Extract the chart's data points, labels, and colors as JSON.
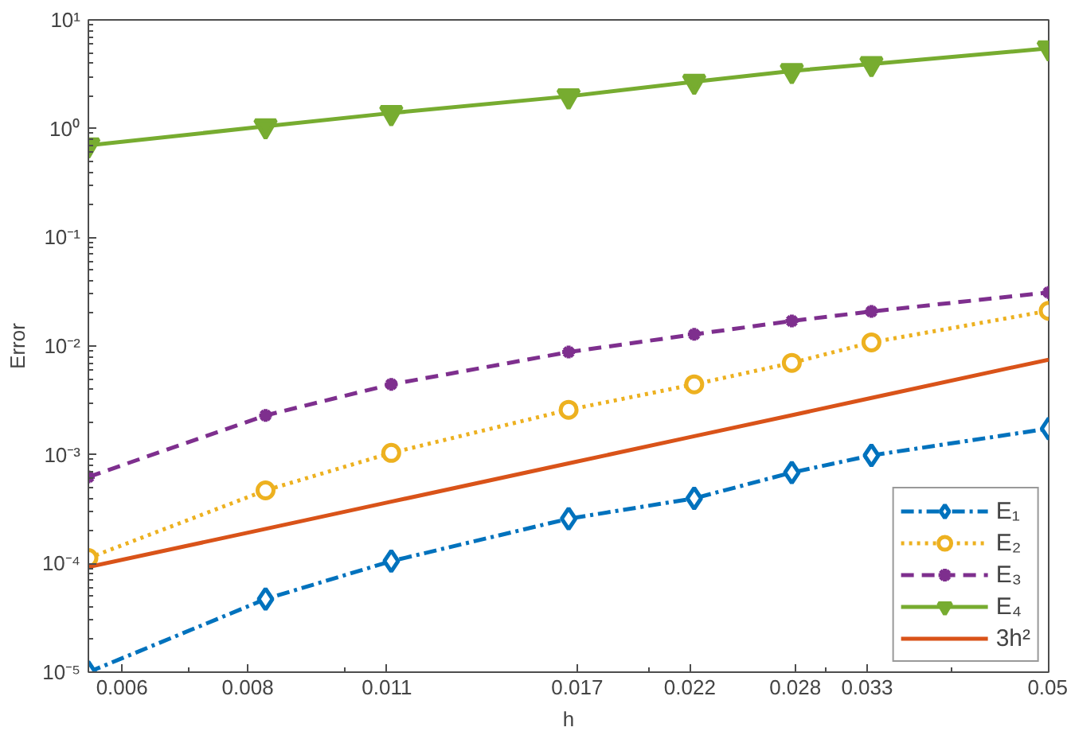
{
  "chart_data": {
    "type": "line",
    "xlabel": "h",
    "ylabel": "Error",
    "log": "xy",
    "grid": false,
    "legend": "bottom right",
    "x": [
      0.005556,
      0.008333,
      0.01111,
      0.01667,
      0.02222,
      0.02778,
      0.03333,
      0.05
    ],
    "xlim": [
      0.005556,
      0.05
    ],
    "xticks": [
      {
        "value": 0.006,
        "label": "0.006"
      },
      {
        "value": 0.007,
        "label": null
      },
      {
        "value": 0.008,
        "label": "0.008"
      },
      {
        "value": 0.01,
        "label": null
      },
      {
        "value": 0.011,
        "label": "0.011"
      },
      {
        "value": 0.017,
        "label": "0.017"
      },
      {
        "value": 0.02,
        "label": null
      },
      {
        "value": 0.022,
        "label": "0.022"
      },
      {
        "value": 0.028,
        "label": "0.028"
      },
      {
        "value": 0.03,
        "label": null
      },
      {
        "value": 0.033,
        "label": "0.033"
      },
      {
        "value": 0.04,
        "label": null
      },
      {
        "value": 0.05,
        "label": "0.05"
      }
    ],
    "ylim": [
      1e-05,
      10
    ],
    "yticks": [
      {
        "value": 1e-05,
        "label": "10⁻⁵"
      },
      {
        "value": 0.0001,
        "label": "10⁻⁴"
      },
      {
        "value": 0.001,
        "label": "10⁻³"
      },
      {
        "value": 0.01,
        "label": "10⁻²"
      },
      {
        "value": 0.1,
        "label": "10⁻¹"
      },
      {
        "value": 1,
        "label": "10⁰"
      },
      {
        "value": 10,
        "label": "10¹"
      }
    ],
    "series": [
      {
        "name": "E₁",
        "color": "#0072bd",
        "marker": "diamond",
        "line_style": "dashdot",
        "values": [
          1e-05,
          4.7e-05,
          0.000105,
          0.000258,
          0.000397,
          0.000686,
          0.000986,
          0.00174
        ]
      },
      {
        "name": "E₂",
        "color": "#edb120",
        "marker": "circle",
        "line_style": "dotted",
        "values": [
          0.000112,
          0.00047,
          0.00104,
          0.00259,
          0.00444,
          0.007,
          0.0108,
          0.0211
        ]
      },
      {
        "name": "E₃",
        "color": "#7e2f8e",
        "marker": "cross",
        "line_style": "dashed",
        "values": [
          0.000625,
          0.0023,
          0.00444,
          0.0088,
          0.0128,
          0.017,
          0.0208,
          0.0311
        ]
      },
      {
        "name": "E₄",
        "color": "#77ac30",
        "marker": "triangle",
        "line_style": "solid",
        "values": [
          0.7,
          1.05,
          1.39,
          1.98,
          2.7,
          3.39,
          3.93,
          5.47
        ]
      },
      {
        "name": "3h²",
        "color": "#d95319",
        "marker": "none",
        "line_style": "solid",
        "values": [
          9.26e-05,
          0.000208,
          0.00037,
          0.000833,
          0.00148,
          0.00231,
          0.00333,
          0.0075
        ]
      }
    ]
  }
}
